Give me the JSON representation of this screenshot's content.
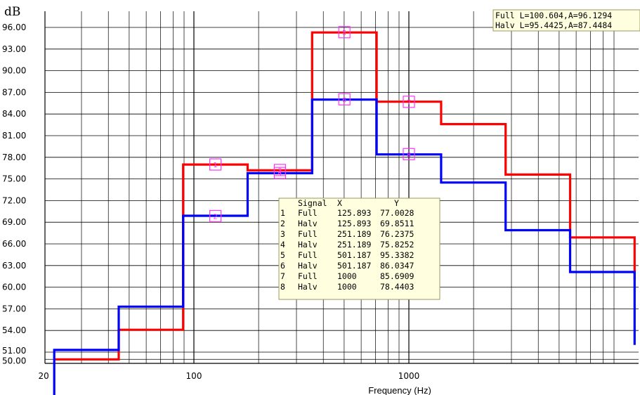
{
  "chart_data": {
    "type": "line",
    "step": true,
    "ylabel": "dB",
    "xlabel": "Frequency (Hz)",
    "xscale": "log",
    "xlim": [
      20,
      8000
    ],
    "ylim": [
      50,
      97
    ],
    "y_ticks": [
      "96.00",
      "93.00",
      "90.00",
      "87.00",
      "84.00",
      "81.00",
      "78.00",
      "75.00",
      "72.00",
      "69.00",
      "66.00",
      "63.00",
      "60.00",
      "57.00",
      "54.00",
      "51.00",
      "50.00"
    ],
    "y_tick_values": [
      96,
      93,
      90,
      87,
      84,
      81,
      78,
      75,
      72,
      69,
      66,
      63,
      60,
      57,
      54,
      51,
      50
    ],
    "x_ticks": [
      "20",
      "100",
      "1000"
    ],
    "x_tick_values": [
      20,
      100,
      1000
    ],
    "grid": true,
    "series": [
      {
        "name": "Full",
        "color": "#ff0000",
        "edges": [
          22.4,
          44.7,
          89.1,
          177.8,
          354.8,
          707.9,
          1412.5,
          2818.4,
          5623.4,
          11220
        ],
        "values": [
          50.0,
          54.1,
          77.0,
          76.2,
          95.3,
          85.7,
          82.6,
          75.6,
          66.9
        ]
      },
      {
        "name": "Halv",
        "color": "#0000ff",
        "edges": [
          22.4,
          44.7,
          89.1,
          177.8,
          354.8,
          707.9,
          1412.5,
          2818.4,
          5623.4,
          11220
        ],
        "values": [
          51.3,
          57.3,
          69.9,
          75.8,
          86.0,
          78.4,
          74.5,
          67.9,
          62.1
        ]
      }
    ],
    "legend": {
      "placement": "top-right",
      "entries": [
        "Full L=100.604,A=96.1294",
        "Halv L=95.4425,A=87.4484"
      ]
    },
    "markers_table": {
      "headers": [
        "",
        "Signal",
        "X",
        "Y"
      ],
      "rows": [
        [
          "1",
          "Full",
          "125.893",
          "77.0028"
        ],
        [
          "2",
          "Halv",
          "125.893",
          "69.8511"
        ],
        [
          "3",
          "Full",
          "251.189",
          "76.2375"
        ],
        [
          "4",
          "Halv",
          "251.189",
          "75.8252"
        ],
        [
          "5",
          "Full",
          "501.187",
          "95.3382"
        ],
        [
          "6",
          "Halv",
          "501.187",
          "86.0347"
        ],
        [
          "7",
          "Full",
          "1000",
          "85.6909"
        ],
        [
          "8",
          "Halv",
          "1000",
          "78.4403"
        ]
      ]
    },
    "colors": {
      "marker": "#ff33ff",
      "box_bg": "#ffffe0",
      "box_border": "#999966"
    }
  }
}
